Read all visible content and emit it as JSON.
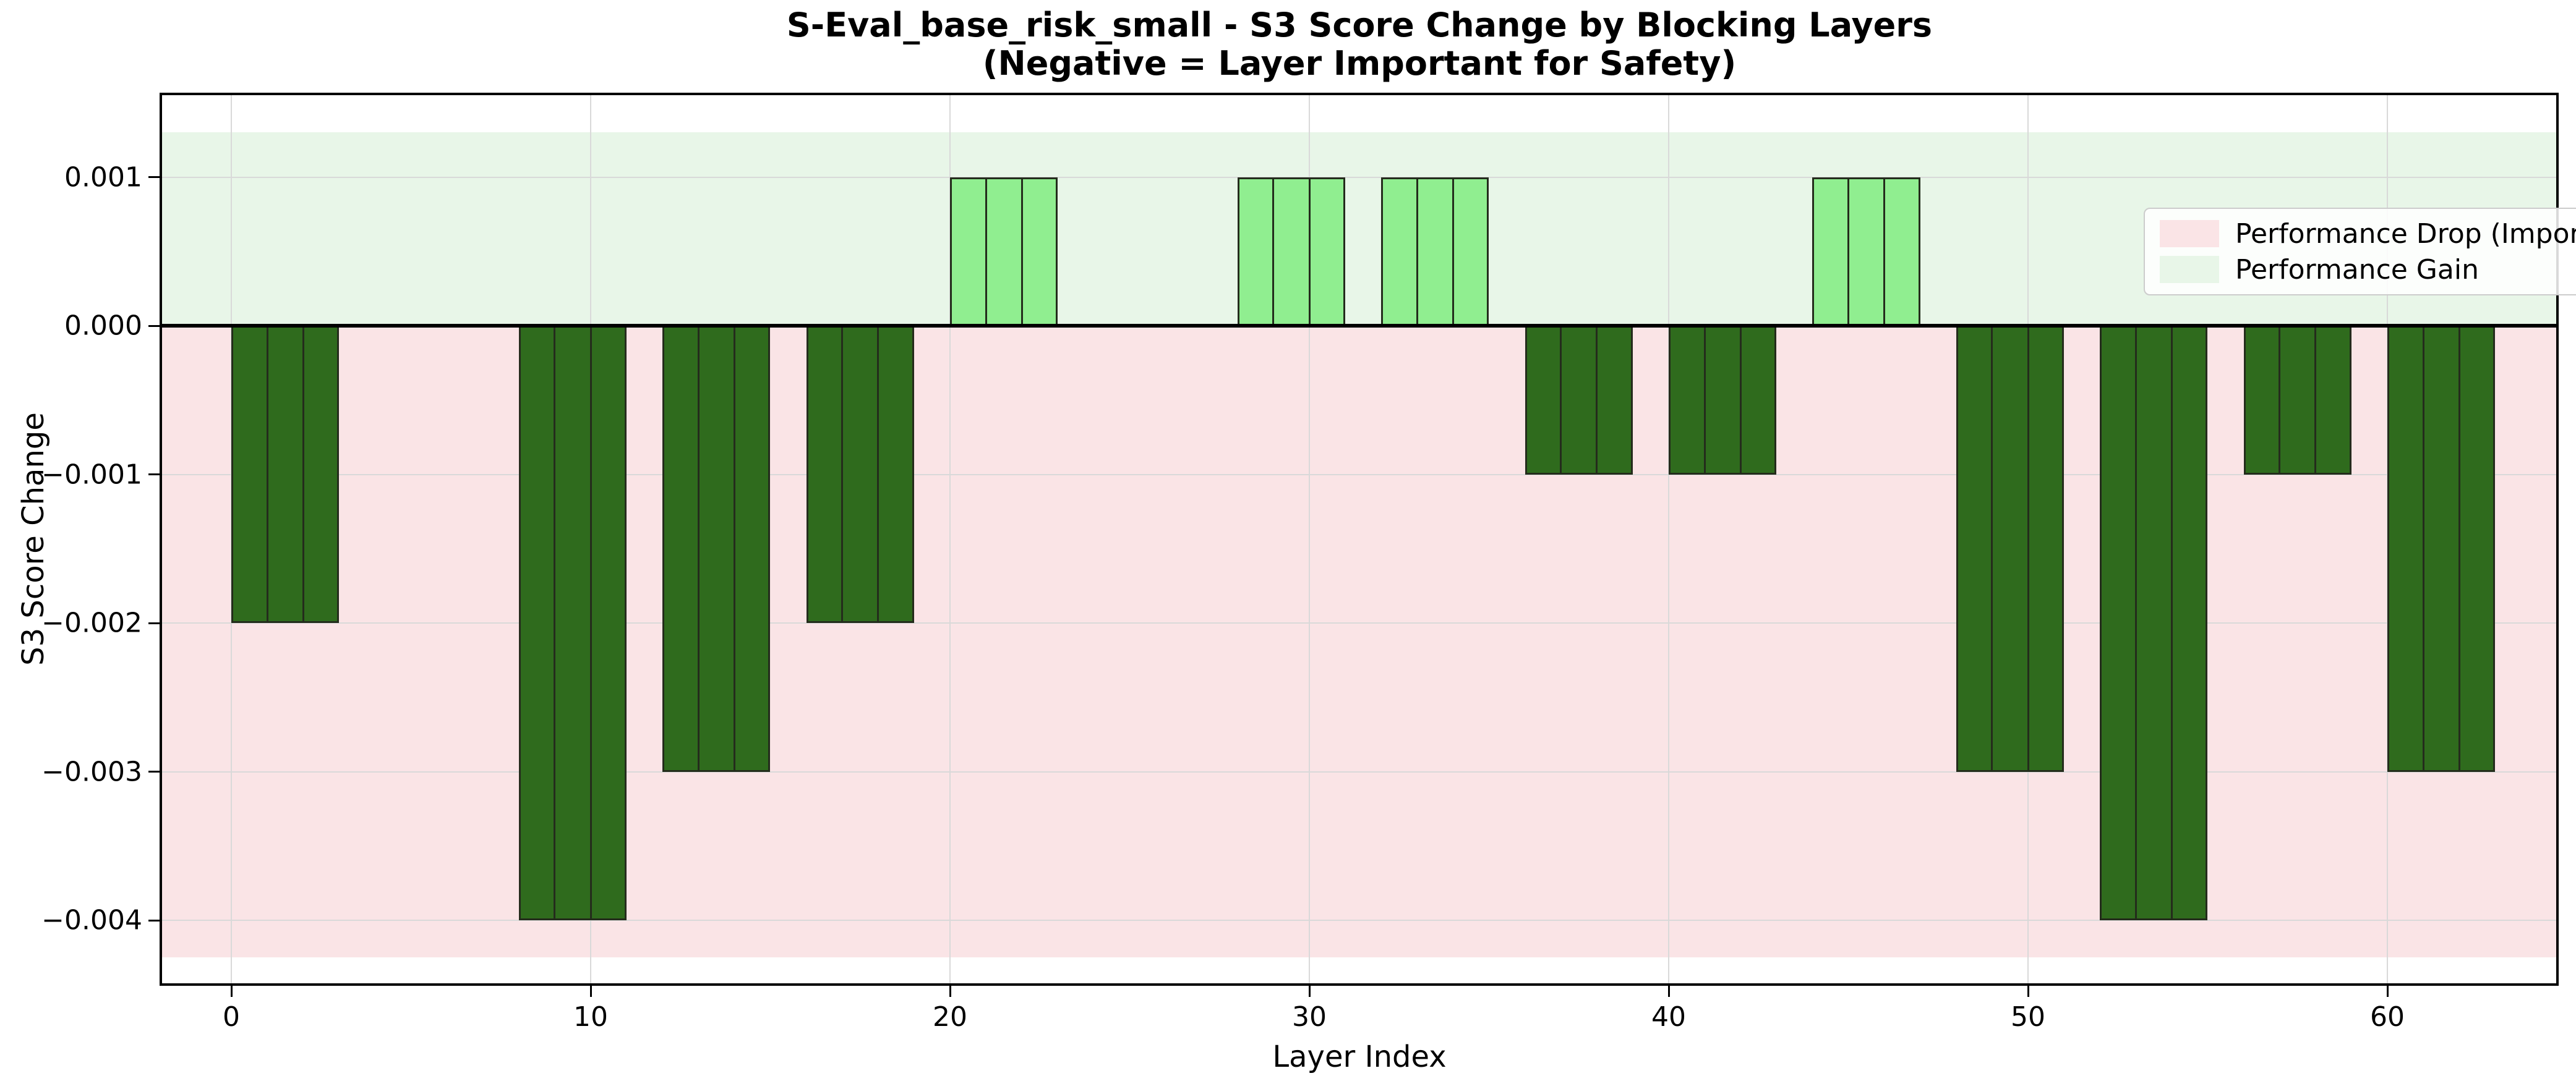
{
  "figure": {
    "background": "#ffffff"
  },
  "chart_data": {
    "type": "bar",
    "title": "S-Eval_base_risk_small - S3 Score Change by Blocking Layers",
    "subtitle": "(Negative = Layer Important for Safety)",
    "xlabel": "Layer Index",
    "ylabel": "S3 Score Change",
    "x_ticks": [
      {
        "value": 0,
        "label": "0"
      },
      {
        "value": 10,
        "label": "10"
      },
      {
        "value": 20,
        "label": "20"
      },
      {
        "value": 30,
        "label": "30"
      },
      {
        "value": 40,
        "label": "40"
      },
      {
        "value": 50,
        "label": "50"
      },
      {
        "value": 60,
        "label": "60"
      }
    ],
    "y_ticks": [
      {
        "value": 0.001,
        "label": "0.001"
      },
      {
        "value": 0.0,
        "label": "0.000"
      },
      {
        "value": -0.001,
        "label": "−0.001"
      },
      {
        "value": -0.002,
        "label": "−0.002"
      },
      {
        "value": -0.003,
        "label": "−0.003"
      },
      {
        "value": -0.004,
        "label": "−0.004"
      }
    ],
    "xlim": [
      -2.0,
      64.8
    ],
    "ylim": [
      -0.00444,
      0.00157
    ],
    "grid": true,
    "zero_line": true,
    "bar_width": 1.0,
    "align": "edge",
    "blocks": [
      {
        "start_layer": 0,
        "end_layer": 2,
        "value": -0.002
      },
      {
        "start_layer": 8,
        "end_layer": 10,
        "value": -0.004
      },
      {
        "start_layer": 12,
        "end_layer": 14,
        "value": -0.003
      },
      {
        "start_layer": 16,
        "end_layer": 18,
        "value": -0.002
      },
      {
        "start_layer": 20,
        "end_layer": 22,
        "value": 0.001
      },
      {
        "start_layer": 28,
        "end_layer": 30,
        "value": 0.001
      },
      {
        "start_layer": 32,
        "end_layer": 34,
        "value": 0.001
      },
      {
        "start_layer": 36,
        "end_layer": 38,
        "value": -0.001
      },
      {
        "start_layer": 40,
        "end_layer": 42,
        "value": -0.001
      },
      {
        "start_layer": 44,
        "end_layer": 46,
        "value": 0.001
      },
      {
        "start_layer": 48,
        "end_layer": 50,
        "value": -0.003
      },
      {
        "start_layer": 52,
        "end_layer": 54,
        "value": -0.004
      },
      {
        "start_layer": 56,
        "end_layer": 58,
        "value": -0.001
      },
      {
        "start_layer": 60,
        "end_layer": 62,
        "value": -0.003
      }
    ],
    "unlisted_layers_value": 0,
    "bands": [
      {
        "name": "gain-band",
        "from": 0.0,
        "to": 0.0013,
        "color": "#e8f6e8"
      },
      {
        "name": "drop-band",
        "from": -0.00425,
        "to": 0.0,
        "color": "#fae4e6"
      }
    ],
    "colors": {
      "drop_bar": "#2f6b1d",
      "gain_bar": "#90ee90",
      "bar_edge": "#242c1c",
      "grid": "#d9d9d9",
      "axis": "#000000",
      "drop_band": "#fae4e6",
      "gain_band": "#e8f6e8"
    },
    "legend": {
      "position": "upper right",
      "items": [
        {
          "label": "Performance Drop (Important Layer)",
          "color": "#fae4e6"
        },
        {
          "label": "Performance Gain",
          "color": "#e8f6e8"
        }
      ]
    }
  }
}
